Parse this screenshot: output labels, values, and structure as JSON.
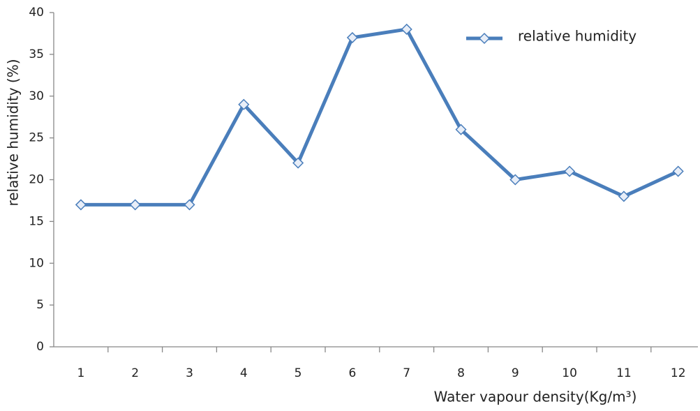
{
  "chart_data": {
    "type": "line",
    "x_label": "Water vapour density(Kg/m³)",
    "y_label": "relative humidity (%)",
    "categories": [
      "1",
      "2",
      "3",
      "4",
      "5",
      "6",
      "7",
      "8",
      "9",
      "10",
      "11",
      "12"
    ],
    "series": [
      {
        "name": "relative humidity",
        "color": "#4a7ebb",
        "values": [
          17,
          17,
          17,
          29,
          22,
          37,
          38,
          26,
          20,
          21,
          18,
          21
        ]
      }
    ],
    "ylim": [
      0,
      40
    ],
    "yticks": [
      0,
      5,
      10,
      15,
      20,
      25,
      30,
      35,
      40
    ],
    "grid": false,
    "legend": "top-right"
  }
}
